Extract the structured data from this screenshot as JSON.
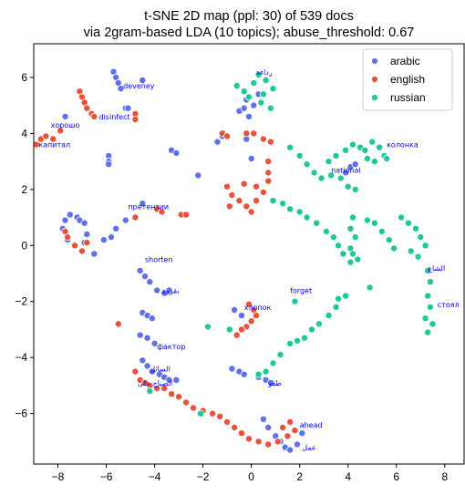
{
  "chart_data": {
    "type": "scatter",
    "title": "t-SNE 2D map (ppl: 30) of 539 docs",
    "subtitle": "via 2gram-based LDA (10 topics); abuse_threshold: 0.67",
    "xlabel": "",
    "ylabel": "",
    "xlim": [
      -9.0,
      8.8
    ],
    "ylim": [
      -7.8,
      7.2
    ],
    "xticks": [
      -8,
      -6,
      -4,
      -2,
      0,
      2,
      4,
      6,
      8
    ],
    "yticks": [
      -6,
      -4,
      -2,
      0,
      2,
      4,
      6
    ],
    "grid": false,
    "legend_position": "top-right",
    "series": [
      {
        "name": "arabic",
        "color": "#6070e8",
        "points": [
          [
            -5.7,
            6.2
          ],
          [
            -5.6,
            6.0
          ],
          [
            -5.5,
            5.8
          ],
          [
            -5.4,
            5.6
          ],
          [
            -4.5,
            5.9
          ],
          [
            -5.2,
            4.9
          ],
          [
            -5.1,
            4.9
          ],
          [
            -7.7,
            4.6
          ],
          [
            -5.9,
            3.2
          ],
          [
            -5.9,
            3.0
          ],
          [
            -5.9,
            2.9
          ],
          [
            -3.3,
            3.4
          ],
          [
            -3.1,
            3.3
          ],
          [
            -4.5,
            1.5
          ],
          [
            -5.2,
            0.9
          ],
          [
            -5.6,
            0.6
          ],
          [
            -5.8,
            0.3
          ],
          [
            -6.1,
            0.2
          ],
          [
            -7.5,
            1.1
          ],
          [
            -7.2,
            1.0
          ],
          [
            -7.1,
            0.9
          ],
          [
            -6.9,
            0.8
          ],
          [
            -6.8,
            0.4
          ],
          [
            -6.9,
            0.1
          ],
          [
            -7.3,
            0.0
          ],
          [
            -7.6,
            0.2
          ],
          [
            -7.8,
            0.6
          ],
          [
            -7.7,
            0.9
          ],
          [
            -4.6,
            -0.9
          ],
          [
            -4.4,
            -1.1
          ],
          [
            -4.2,
            -1.3
          ],
          [
            -3.9,
            -1.6
          ],
          [
            -3.6,
            -1.7
          ],
          [
            -3.4,
            -1.6
          ],
          [
            -4.5,
            -2.4
          ],
          [
            -4.3,
            -2.5
          ],
          [
            -4.1,
            -2.6
          ],
          [
            -4.6,
            -3.2
          ],
          [
            -4.3,
            -3.3
          ],
          [
            -4.0,
            -3.5
          ],
          [
            -4.5,
            -4.1
          ],
          [
            -4.3,
            -4.3
          ],
          [
            -4.1,
            -4.5
          ],
          [
            -3.8,
            -4.6
          ],
          [
            -3.6,
            -4.7
          ],
          [
            -3.4,
            -4.8
          ],
          [
            -3.1,
            -4.8
          ],
          [
            -2.2,
            2.5
          ],
          [
            -1.4,
            3.7
          ],
          [
            -1.2,
            3.9
          ],
          [
            -0.5,
            4.8
          ],
          [
            -0.3,
            4.9
          ],
          [
            -0.2,
            5.2
          ],
          [
            -0.1,
            4.6
          ],
          [
            0.1,
            5.0
          ],
          [
            0.3,
            5.4
          ],
          [
            -0.2,
            3.8
          ],
          [
            0.0,
            3.1
          ],
          [
            -0.8,
            -4.4
          ],
          [
            -0.5,
            -4.5
          ],
          [
            -0.3,
            -4.6
          ],
          [
            0.3,
            -4.7
          ],
          [
            0.6,
            -4.8
          ],
          [
            0.8,
            -4.9
          ],
          [
            0.5,
            -6.2
          ],
          [
            0.7,
            -6.5
          ],
          [
            1.0,
            -6.8
          ],
          [
            1.2,
            -7.0
          ],
          [
            1.4,
            -7.2
          ],
          [
            1.6,
            -7.3
          ],
          [
            1.9,
            -7.1
          ],
          [
            2.1,
            -6.7
          ],
          [
            3.9,
            2.6
          ],
          [
            4.1,
            2.8
          ],
          [
            4.3,
            2.9
          ],
          [
            -0.7,
            -2.3
          ],
          [
            -0.4,
            -2.5
          ],
          [
            -6.5,
            -0.3
          ]
        ]
      },
      {
        "name": "english",
        "color": "#e8523a",
        "points": [
          [
            -8.9,
            3.6
          ],
          [
            -8.7,
            3.8
          ],
          [
            -8.5,
            3.9
          ],
          [
            -8.2,
            3.8
          ],
          [
            -7.9,
            4.1
          ],
          [
            -7.1,
            5.5
          ],
          [
            -7.0,
            5.3
          ],
          [
            -6.9,
            5.1
          ],
          [
            -6.8,
            4.9
          ],
          [
            -6.6,
            4.7
          ],
          [
            -6.5,
            4.6
          ],
          [
            -4.8,
            4.7
          ],
          [
            -4.8,
            4.5
          ],
          [
            -4.8,
            1.0
          ],
          [
            -3.9,
            1.3
          ],
          [
            -3.7,
            1.2
          ],
          [
            -2.9,
            1.1
          ],
          [
            -2.7,
            1.1
          ],
          [
            -7.7,
            0.5
          ],
          [
            -7.6,
            0.3
          ],
          [
            -7.3,
            0.0
          ],
          [
            -7.0,
            -0.2
          ],
          [
            -6.8,
            0.1
          ],
          [
            -5.5,
            -2.8
          ],
          [
            -4.8,
            -4.5
          ],
          [
            -4.6,
            -4.8
          ],
          [
            -4.4,
            -4.9
          ],
          [
            -4.2,
            -5.0
          ],
          [
            -3.9,
            -5.1
          ],
          [
            -3.6,
            -5.1
          ],
          [
            -3.3,
            -5.3
          ],
          [
            -3.0,
            -5.4
          ],
          [
            -2.7,
            -5.6
          ],
          [
            -2.4,
            -5.8
          ],
          [
            -2.0,
            -5.9
          ],
          [
            -1.6,
            -6.0
          ],
          [
            -1.3,
            -6.1
          ],
          [
            -1.0,
            -6.3
          ],
          [
            -0.7,
            -6.5
          ],
          [
            -0.4,
            -6.7
          ],
          [
            -0.1,
            -6.9
          ],
          [
            0.3,
            -7.0
          ],
          [
            0.7,
            -7.1
          ],
          [
            1.1,
            -7.0
          ],
          [
            1.5,
            -6.8
          ],
          [
            1.8,
            -6.6
          ],
          [
            -1.2,
            4.0
          ],
          [
            -1.0,
            3.9
          ],
          [
            -0.2,
            4.0
          ],
          [
            0.1,
            4.0
          ],
          [
            0.5,
            3.8
          ],
          [
            0.8,
            3.7
          ],
          [
            0.7,
            3.0
          ],
          [
            0.7,
            2.6
          ],
          [
            0.7,
            2.3
          ],
          [
            -1.0,
            2.1
          ],
          [
            -0.8,
            1.8
          ],
          [
            -0.5,
            1.6
          ],
          [
            -0.2,
            1.4
          ],
          [
            0.2,
            1.6
          ],
          [
            0.5,
            1.9
          ],
          [
            0.2,
            2.1
          ],
          [
            -0.3,
            2.2
          ],
          [
            0.0,
            1.2
          ],
          [
            -0.9,
            1.4
          ],
          [
            -0.1,
            -2.1
          ],
          [
            0.1,
            -2.3
          ],
          [
            0.2,
            -2.5
          ],
          [
            0.0,
            -2.7
          ],
          [
            -0.2,
            -2.9
          ],
          [
            -0.4,
            -3.0
          ],
          [
            -0.6,
            -3.2
          ],
          [
            1.6,
            -6.3
          ],
          [
            1.3,
            -6.5
          ]
        ]
      },
      {
        "name": "russian",
        "color": "#1fc896",
        "points": [
          [
            -0.6,
            5.7
          ],
          [
            -0.3,
            5.5
          ],
          [
            0.1,
            5.8
          ],
          [
            0.3,
            6.1
          ],
          [
            0.6,
            5.9
          ],
          [
            0.9,
            5.6
          ],
          [
            -0.1,
            5.3
          ],
          [
            0.4,
            5.1
          ],
          [
            0.8,
            4.9
          ],
          [
            1.6,
            3.5
          ],
          [
            2.0,
            3.2
          ],
          [
            2.3,
            2.9
          ],
          [
            2.6,
            2.6
          ],
          [
            2.9,
            2.4
          ],
          [
            3.3,
            2.5
          ],
          [
            3.7,
            2.4
          ],
          [
            4.0,
            2.1
          ],
          [
            4.3,
            2.0
          ],
          [
            3.2,
            3.0
          ],
          [
            3.5,
            3.2
          ],
          [
            3.9,
            3.4
          ],
          [
            4.2,
            3.6
          ],
          [
            4.5,
            3.5
          ],
          [
            4.7,
            3.4
          ],
          [
            5.0,
            3.7
          ],
          [
            5.3,
            3.5
          ],
          [
            5.5,
            3.2
          ],
          [
            5.1,
            3.0
          ],
          [
            4.8,
            3.1
          ],
          [
            5.6,
            3.1
          ],
          [
            0.9,
            1.6
          ],
          [
            1.3,
            1.5
          ],
          [
            1.6,
            1.3
          ],
          [
            2.0,
            1.2
          ],
          [
            2.3,
            1.0
          ],
          [
            2.7,
            0.8
          ],
          [
            3.1,
            0.5
          ],
          [
            3.4,
            0.3
          ],
          [
            3.6,
            0.0
          ],
          [
            3.8,
            -0.3
          ],
          [
            4.1,
            -0.6
          ],
          [
            4.2,
            1.0
          ],
          [
            4.1,
            0.6
          ],
          [
            4.3,
            0.3
          ],
          [
            4.1,
            -0.1
          ],
          [
            4.2,
            -0.3
          ],
          [
            4.4,
            -0.5
          ],
          [
            4.8,
            0.9
          ],
          [
            5.1,
            0.8
          ],
          [
            5.4,
            0.5
          ],
          [
            5.7,
            0.2
          ],
          [
            5.9,
            -0.1
          ],
          [
            6.2,
            1.0
          ],
          [
            6.5,
            0.8
          ],
          [
            6.8,
            0.6
          ],
          [
            7.0,
            0.3
          ],
          [
            7.2,
            0.0
          ],
          [
            6.6,
            -0.2
          ],
          [
            6.9,
            -0.4
          ],
          [
            7.3,
            -0.9
          ],
          [
            7.4,
            -1.3
          ],
          [
            7.3,
            -1.8
          ],
          [
            7.4,
            -2.2
          ],
          [
            7.2,
            -2.6
          ],
          [
            7.5,
            -2.8
          ],
          [
            7.3,
            -3.1
          ],
          [
            3.6,
            -1.9
          ],
          [
            3.9,
            -1.8
          ],
          [
            3.5,
            -2.2
          ],
          [
            3.2,
            -2.5
          ],
          [
            2.8,
            -2.8
          ],
          [
            2.5,
            -3.0
          ],
          [
            2.2,
            -3.3
          ],
          [
            1.9,
            -3.4
          ],
          [
            1.6,
            -3.5
          ],
          [
            4.9,
            -1.5
          ],
          [
            1.2,
            -3.9
          ],
          [
            0.9,
            -4.2
          ],
          [
            0.6,
            -4.5
          ],
          [
            0.3,
            -4.6
          ],
          [
            -0.9,
            -3.0
          ],
          [
            -1.8,
            -2.9
          ],
          [
            -4.2,
            -5.2
          ],
          [
            -2.1,
            -6.0
          ],
          [
            1.8,
            -2.0
          ],
          [
            0.5,
            5.4
          ]
        ]
      }
    ],
    "annotations": [
      {
        "text": "ﺭﺩﺍﺀﺔ",
        "x": 0.2,
        "y": 6.1
      },
      {
        "text": "deveney",
        "x": -5.3,
        "y": 5.6
      },
      {
        "text": "disinfect",
        "x": -6.3,
        "y": 4.5
      },
      {
        "text": "хорошо",
        "x": -8.3,
        "y": 4.2
      },
      {
        "text": "капитал",
        "x": -8.8,
        "y": 3.5
      },
      {
        "text": "колонка",
        "x": 5.6,
        "y": 3.5
      },
      {
        "text": "national",
        "x": 3.3,
        "y": 2.6
      },
      {
        "text": "претензии",
        "x": -5.1,
        "y": 1.3
      },
      {
        "text": "shorten",
        "x": -4.4,
        "y": -0.6
      },
      {
        "text": "ﺑﻘﺮﻮﺪ",
        "x": -3.7,
        "y": -1.7
      },
      {
        "text": "forget",
        "x": 1.6,
        "y": -1.7
      },
      {
        "text": "хлопок",
        "x": -0.3,
        "y": -2.3
      },
      {
        "text": "ﺍﻟﺸﺎﻉ",
        "x": 7.3,
        "y": -0.9
      },
      {
        "text": "стоял",
        "x": 7.7,
        "y": -2.2
      },
      {
        "text": "фактор",
        "x": -3.9,
        "y": -3.7
      },
      {
        "text": "ﺍﻟﺴﺎﺋﻞ",
        "x": -4.2,
        "y": -4.5
      },
      {
        "text": "ﺍﻟﺼﺒﺎﺡ ﻋﻠﻰ",
        "x": -4.7,
        "y": -5.0
      },
      {
        "text": "ﻃﻘﻮ",
        "x": 0.7,
        "y": -5.0
      },
      {
        "text": "ahead",
        "x": 2.0,
        "y": -6.5
      },
      {
        "text": "ﻋﻤﻞ",
        "x": 2.1,
        "y": -7.3
      }
    ]
  }
}
